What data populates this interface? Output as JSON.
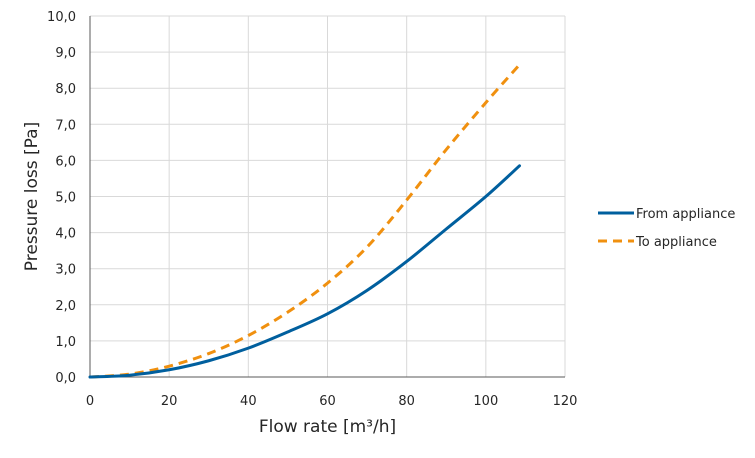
{
  "chart_data": {
    "type": "line",
    "xlabel": "Flow rate [m³/h]",
    "ylabel": "Pressure loss [Pa]",
    "xlim": [
      0,
      120
    ],
    "ylim": [
      0,
      10
    ],
    "x_ticks": [
      "0",
      "20",
      "40",
      "60",
      "80",
      "100",
      "120"
    ],
    "y_ticks": [
      "0,0",
      "1,0",
      "2,0",
      "3,0",
      "4,0",
      "5,0",
      "6,0",
      "7,0",
      "8,0",
      "9,0",
      "10,0"
    ],
    "grid": true,
    "legend_position": "right",
    "series": [
      {
        "name": "From appliance",
        "color": "#005f9e",
        "dash": "solid",
        "x": [
          0,
          10,
          20,
          30,
          40,
          50,
          60,
          70,
          80,
          90,
          100,
          108.5
        ],
        "y": [
          0,
          0.05,
          0.2,
          0.45,
          0.8,
          1.25,
          1.75,
          2.4,
          3.2,
          4.1,
          5.0,
          5.85
        ]
      },
      {
        "name": "To appliance",
        "color": "#f0900f",
        "dash": "dashed",
        "x": [
          0,
          10,
          20,
          30,
          40,
          50,
          60,
          70,
          80,
          90,
          100,
          108.5
        ],
        "y": [
          0,
          0.08,
          0.3,
          0.65,
          1.15,
          1.8,
          2.6,
          3.6,
          4.9,
          6.3,
          7.6,
          8.65
        ]
      }
    ]
  }
}
